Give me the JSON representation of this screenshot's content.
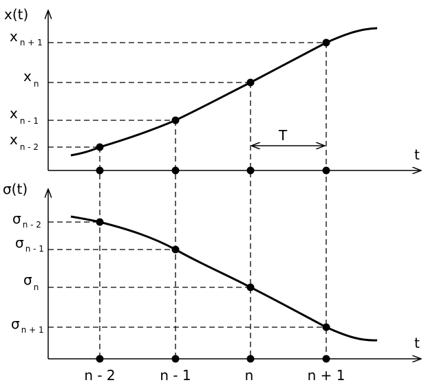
{
  "top_plot": {
    "y_label": "x(t)",
    "x_label": "t",
    "period_label": "T",
    "levels": [
      {
        "base": "x",
        "sub": "n + 1"
      },
      {
        "base": "x",
        "sub": "n"
      },
      {
        "base": "x",
        "sub": "n - 1"
      },
      {
        "base": "x",
        "sub": "n - 2"
      }
    ]
  },
  "bottom_plot": {
    "y_label": "σ(t)",
    "x_label": "t",
    "levels": [
      {
        "base": "σ",
        "sub": "n - 2"
      },
      {
        "base": "σ",
        "sub": "n - 1"
      },
      {
        "base": "σ",
        "sub": "n"
      },
      {
        "base": "σ",
        "sub": "n + 1"
      }
    ],
    "x_tick_labels": [
      "n - 2",
      "n - 1",
      "n",
      "n + 1"
    ]
  }
}
